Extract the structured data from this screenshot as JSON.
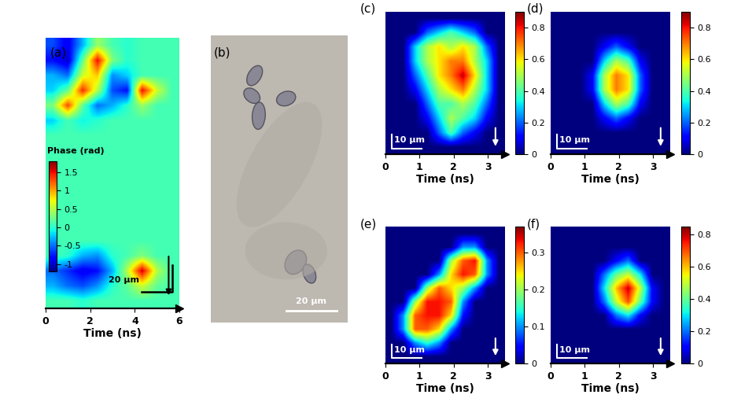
{
  "chart_data": [
    {
      "type": "heatmap",
      "label": "(a)",
      "x_label": "Time (ns)",
      "xlim": [
        0,
        6
      ],
      "xticks": [
        0,
        2,
        4,
        6
      ],
      "tick_labels": "x",
      "colorbar_label": "Phase (rad)",
      "colorbar_range": [
        -1.2,
        1.8
      ],
      "colorbar_ticks": [
        -1,
        -0.5,
        0,
        0.5,
        1,
        1.5
      ],
      "scale_bar": "20 µm",
      "cells": [
        [
          -0.6,
          -0.9,
          -0.3,
          0.4,
          0.1,
          0.0,
          0.1,
          0.1,
          0.1
        ],
        [
          -0.8,
          -1.0,
          0.2,
          1.5,
          0.3,
          0.0,
          0.1,
          0.1,
          0.1
        ],
        [
          -0.3,
          -0.5,
          0.6,
          0.9,
          -0.4,
          -0.2,
          0.1,
          0.1,
          0.1
        ],
        [
          -0.2,
          0.2,
          1.4,
          0.5,
          -0.6,
          -0.8,
          1.5,
          0.6,
          0.1
        ],
        [
          0.3,
          1.3,
          0.2,
          -0.5,
          -0.3,
          0.0,
          0.4,
          0.1,
          0.1
        ],
        [
          -0.2,
          0.1,
          -0.1,
          0.0,
          0.1,
          0.1,
          0.1,
          0.1,
          0.1
        ],
        [
          0.1,
          0.1,
          0.1,
          0.1,
          0.1,
          0.1,
          0.1,
          0.1,
          0.1
        ],
        [
          0.1,
          0.1,
          0.1,
          0.1,
          0.1,
          0.1,
          0.1,
          0.1,
          0.1
        ],
        [
          0.1,
          0.1,
          0.1,
          0.1,
          0.1,
          0.1,
          0.1,
          0.1,
          0.1
        ],
        [
          0.1,
          0.1,
          0.1,
          0.1,
          0.1,
          0.1,
          0.1,
          0.1,
          0.1
        ],
        [
          0.1,
          0.1,
          0.1,
          0.1,
          0.1,
          0.1,
          0.1,
          0.1,
          0.1
        ],
        [
          0.1,
          0.1,
          0.1,
          0.1,
          0.1,
          0.1,
          0.1,
          0.1,
          0.1
        ],
        [
          0.1,
          0.1,
          0.1,
          0.1,
          0.1,
          0.1,
          0.1,
          0.1,
          0.1
        ],
        [
          0.1,
          0.1,
          0.1,
          0.1,
          0.1,
          0.1,
          0.1,
          0.1,
          0.1
        ],
        [
          0.1,
          0.0,
          -0.3,
          -0.4,
          0.0,
          0.1,
          0.3,
          0.1,
          0.1
        ],
        [
          -0.5,
          -0.7,
          -0.9,
          -0.8,
          -0.3,
          0.5,
          1.6,
          0.5,
          0.1
        ],
        [
          -0.3,
          -0.5,
          -0.6,
          -0.4,
          0.0,
          0.2,
          0.6,
          0.2,
          0.1
        ],
        [
          0.1,
          0.1,
          0.0,
          0.1,
          0.1,
          0.1,
          0.1,
          0.1,
          0.1
        ]
      ]
    },
    {
      "type": "image",
      "label": "(b)",
      "tick_labels": false,
      "scale_bar": "20 µm"
    },
    {
      "type": "heatmap",
      "label": "(c)",
      "x_label": "Time (ns)",
      "xlim": [
        0,
        3.5
      ],
      "xticks": [
        0,
        1,
        2,
        3
      ],
      "tick_labels": "x",
      "colorbar_range": [
        0,
        0.9
      ],
      "colorbar_ticks": [
        0,
        0.2,
        0.4,
        0.6,
        0.8
      ],
      "scale_bar": "10 µm",
      "cells": [
        [
          0,
          0,
          0,
          0,
          0,
          0,
          0,
          0,
          0,
          0
        ],
        [
          0,
          0,
          0,
          0.2,
          0.3,
          0.4,
          0.3,
          0.2,
          0,
          0
        ],
        [
          0,
          0,
          0.3,
          0.5,
          0.6,
          0.5,
          0.6,
          0.5,
          0.2,
          0
        ],
        [
          0,
          0,
          0.3,
          0.5,
          0.6,
          0.7,
          0.7,
          0.5,
          0.3,
          0
        ],
        [
          0,
          0,
          0.2,
          0.4,
          0.6,
          0.7,
          0.85,
          0.6,
          0.3,
          0
        ],
        [
          0,
          0,
          0.1,
          0.3,
          0.5,
          0.6,
          0.7,
          0.5,
          0.3,
          0
        ],
        [
          0,
          0,
          0,
          0.2,
          0.4,
          0.4,
          0.5,
          0.4,
          0.2,
          0
        ],
        [
          0,
          0,
          0,
          0.1,
          0.3,
          0.5,
          0.4,
          0.3,
          0.1,
          0
        ],
        [
          0,
          0,
          0,
          0,
          0.2,
          0.4,
          0.2,
          0.1,
          0,
          0
        ],
        [
          0,
          0,
          0,
          0,
          0,
          0,
          0,
          0,
          0,
          0
        ]
      ]
    },
    {
      "type": "heatmap",
      "label": "(d)",
      "x_label": "Time (ns)",
      "xlim": [
        0,
        3.5
      ],
      "xticks": [
        0,
        1,
        2,
        3
      ],
      "tick_labels": "x",
      "colorbar_range": [
        0,
        0.9
      ],
      "colorbar_ticks": [
        0,
        0.2,
        0.4,
        0.6,
        0.8
      ],
      "scale_bar": "10 µm",
      "cells": [
        [
          0,
          0,
          0,
          0,
          0,
          0,
          0,
          0,
          0,
          0
        ],
        [
          0,
          0,
          0,
          0,
          0,
          0,
          0,
          0,
          0,
          0
        ],
        [
          0,
          0,
          0,
          0,
          0.1,
          0.2,
          0.1,
          0,
          0,
          0
        ],
        [
          0,
          0,
          0,
          0,
          0.3,
          0.5,
          0.4,
          0.1,
          0,
          0
        ],
        [
          0,
          0,
          0,
          0.1,
          0.5,
          0.7,
          0.6,
          0.2,
          0,
          0
        ],
        [
          0,
          0,
          0,
          0.1,
          0.5,
          0.7,
          0.6,
          0.2,
          0,
          0
        ],
        [
          0,
          0,
          0,
          0,
          0.3,
          0.5,
          0.4,
          0.1,
          0,
          0
        ],
        [
          0,
          0,
          0,
          0,
          0.1,
          0.2,
          0.1,
          0,
          0,
          0
        ],
        [
          0,
          0,
          0,
          0,
          0,
          0,
          0,
          0,
          0,
          0
        ],
        [
          0,
          0,
          0,
          0,
          0,
          0,
          0,
          0,
          0,
          0
        ]
      ]
    },
    {
      "type": "heatmap",
      "label": "(e)",
      "x_label": "Time (ns)",
      "xlim": [
        0,
        3.5
      ],
      "xticks": [
        0,
        1,
        2,
        3
      ],
      "tick_labels": "x",
      "colorbar_range": [
        0,
        0.37
      ],
      "colorbar_ticks": [
        0,
        0.1,
        0.2,
        0.3
      ],
      "scale_bar": "10 µm",
      "cells": [
        [
          0,
          0,
          0,
          0,
          0,
          0,
          0,
          0,
          0,
          0
        ],
        [
          0,
          0,
          0,
          0,
          0,
          0,
          0.1,
          0.1,
          0,
          0
        ],
        [
          0,
          0,
          0,
          0,
          0,
          0.2,
          0.3,
          0.33,
          0.1,
          0
        ],
        [
          0,
          0,
          0,
          0,
          0.1,
          0.25,
          0.33,
          0.3,
          0.1,
          0
        ],
        [
          0,
          0,
          0,
          0.2,
          0.3,
          0.25,
          0.2,
          0.1,
          0,
          0
        ],
        [
          0,
          0,
          0.2,
          0.33,
          0.33,
          0.3,
          0.1,
          0,
          0,
          0
        ],
        [
          0,
          0.1,
          0.3,
          0.33,
          0.33,
          0.25,
          0.05,
          0,
          0,
          0
        ],
        [
          0,
          0.1,
          0.3,
          0.3,
          0.25,
          0.1,
          0,
          0,
          0,
          0
        ],
        [
          0,
          0,
          0.1,
          0.15,
          0.1,
          0,
          0,
          0,
          0,
          0
        ],
        [
          0,
          0,
          0,
          0,
          0,
          0,
          0,
          0,
          0,
          0
        ]
      ]
    },
    {
      "type": "heatmap",
      "label": "(f)",
      "x_label": "Time (ns)",
      "xlim": [
        0,
        3.5
      ],
      "xticks": [
        0,
        1,
        2,
        3
      ],
      "tick_labels": "x",
      "colorbar_range": [
        0,
        0.85
      ],
      "colorbar_ticks": [
        0,
        0.2,
        0.4,
        0.6,
        0.8
      ],
      "scale_bar": "10 µm",
      "cells": [
        [
          0,
          0,
          0,
          0,
          0,
          0,
          0,
          0,
          0,
          0
        ],
        [
          0,
          0,
          0,
          0,
          0,
          0,
          0,
          0,
          0,
          0
        ],
        [
          0,
          0,
          0,
          0,
          0,
          0.1,
          0.2,
          0,
          0,
          0
        ],
        [
          0,
          0,
          0,
          0,
          0.2,
          0.4,
          0.5,
          0.3,
          0,
          0
        ],
        [
          0,
          0,
          0,
          0,
          0.3,
          0.6,
          0.8,
          0.5,
          0.1,
          0
        ],
        [
          0,
          0,
          0,
          0,
          0.2,
          0.5,
          0.7,
          0.4,
          0.1,
          0
        ],
        [
          0,
          0,
          0,
          0,
          0,
          0.2,
          0.3,
          0.1,
          0,
          0
        ],
        [
          0,
          0,
          0,
          0,
          0,
          0,
          0,
          0,
          0,
          0
        ],
        [
          0,
          0,
          0,
          0,
          0,
          0,
          0,
          0,
          0,
          0
        ],
        [
          0,
          0,
          0,
          0,
          0,
          0,
          0,
          0,
          0,
          0
        ]
      ]
    }
  ]
}
